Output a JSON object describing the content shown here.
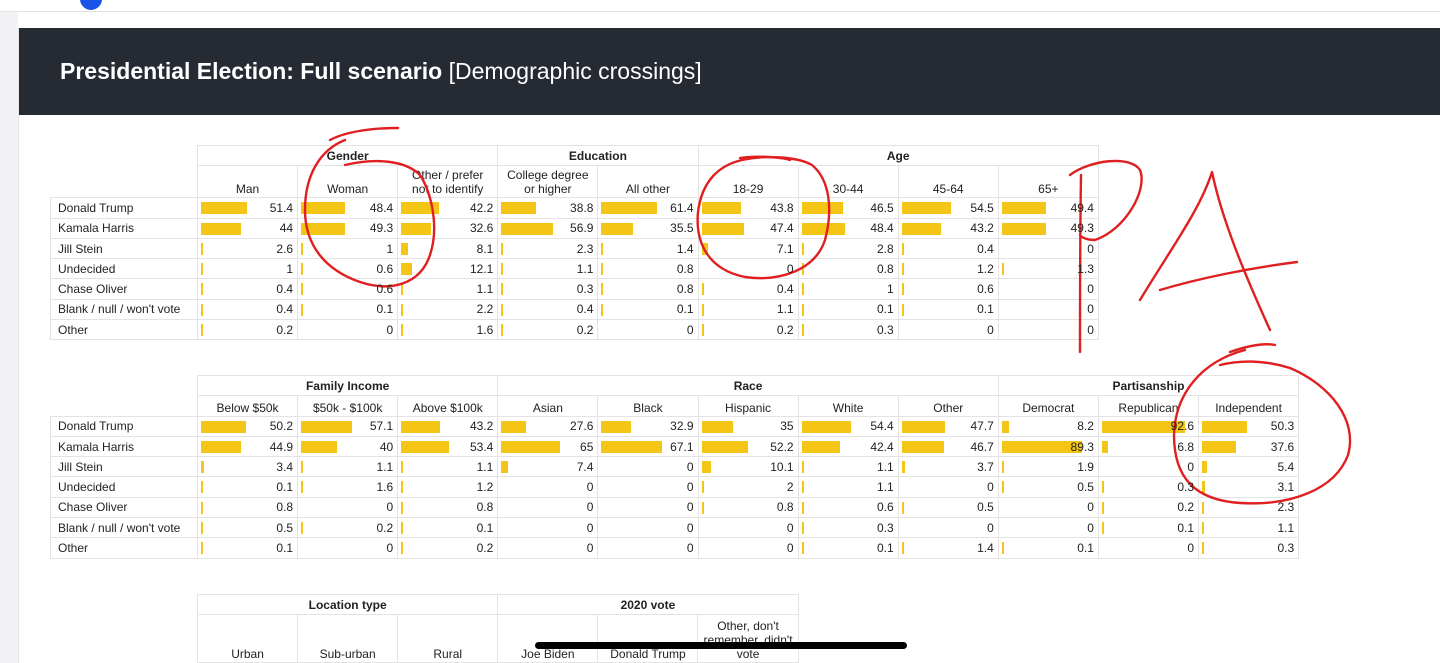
{
  "title": {
    "main": "Presidential Election: Full scenario",
    "sub": "[Demographic crossings]"
  },
  "rows": [
    "Donald Trump",
    "Kamala Harris",
    "Jill Stein",
    "Undecided",
    "Chase Oliver",
    "Blank / null / won't vote",
    "Other"
  ],
  "table1": {
    "groups": [
      {
        "name": "Gender",
        "cols": [
          "Man",
          "Woman",
          "Other / prefer not to identify"
        ]
      },
      {
        "name": "Education",
        "cols": [
          "College degree or higher",
          "All other"
        ]
      },
      {
        "name": "Age",
        "cols": [
          "18-29",
          "30-44",
          "45-64",
          "65+"
        ]
      }
    ],
    "values": [
      [
        "51.4",
        "48.4",
        "42.2",
        "38.8",
        "61.4",
        "43.8",
        "46.5",
        "54.5",
        "49.4"
      ],
      [
        "44",
        "49.3",
        "32.6",
        "56.9",
        "35.5",
        "47.4",
        "48.4",
        "43.2",
        "49.3"
      ],
      [
        "2.6",
        "1",
        "8.1",
        "2.3",
        "1.4",
        "7.1",
        "2.8",
        "0.4",
        "0"
      ],
      [
        "1",
        "0.6",
        "12.1",
        "1.1",
        "0.8",
        "0",
        "0.8",
        "1.2",
        "1.3"
      ],
      [
        "0.4",
        "0.6",
        "1.1",
        "0.3",
        "0.8",
        "0.4",
        "1",
        "0.6",
        "0"
      ],
      [
        "0.4",
        "0.1",
        "2.2",
        "0.4",
        "0.1",
        "1.1",
        "0.1",
        "0.1",
        "0"
      ],
      [
        "0.2",
        "0",
        "1.6",
        "0.2",
        "0",
        "0.2",
        "0.3",
        "0",
        "0"
      ]
    ]
  },
  "table2": {
    "groups": [
      {
        "name": "Family Income",
        "cols": [
          "Below $50k",
          "$50k - $100k",
          "Above $100k"
        ]
      },
      {
        "name": "Race",
        "cols": [
          "Asian",
          "Black",
          "Hispanic",
          "White",
          "Other"
        ]
      },
      {
        "name": "Partisanship",
        "cols": [
          "Democrat",
          "Republican",
          "Independent"
        ]
      }
    ],
    "values": [
      [
        "50.2",
        "57.1",
        "43.2",
        "27.6",
        "32.9",
        "35",
        "54.4",
        "47.7",
        "8.2",
        "92.6",
        "50.3"
      ],
      [
        "44.9",
        "40",
        "53.4",
        "65",
        "67.1",
        "52.2",
        "42.4",
        "46.7",
        "89.3",
        "6.8",
        "37.6"
      ],
      [
        "3.4",
        "1.1",
        "1.1",
        "7.4",
        "0",
        "10.1",
        "1.1",
        "3.7",
        "1.9",
        "0",
        "5.4"
      ],
      [
        "0.1",
        "1.6",
        "1.2",
        "0",
        "0",
        "2",
        "1.1",
        "0",
        "0.5",
        "0.3",
        "3.1"
      ],
      [
        "0.8",
        "0",
        "0.8",
        "0",
        "0",
        "0.8",
        "0.6",
        "0.5",
        "0",
        "0.2",
        "2.3"
      ],
      [
        "0.5",
        "0.2",
        "0.1",
        "0",
        "0",
        "0",
        "0.3",
        "0",
        "0",
        "0.1",
        "1.1"
      ],
      [
        "0.1",
        "0",
        "0.2",
        "0",
        "0",
        "0",
        "0.1",
        "1.4",
        "0.1",
        "0",
        "0.3"
      ]
    ]
  },
  "table3": {
    "groups": [
      {
        "name": "Location type",
        "cols": [
          "Urban",
          "Sub-urban",
          "Rural"
        ]
      },
      {
        "name": "2020 vote",
        "cols": [
          "Joe Biden",
          "Donald Trump",
          "Other, don't remember, didn't vote"
        ]
      }
    ]
  },
  "colors": {
    "bar": "#f4c514",
    "banner": "#252a33",
    "annotation": "#e02020"
  }
}
